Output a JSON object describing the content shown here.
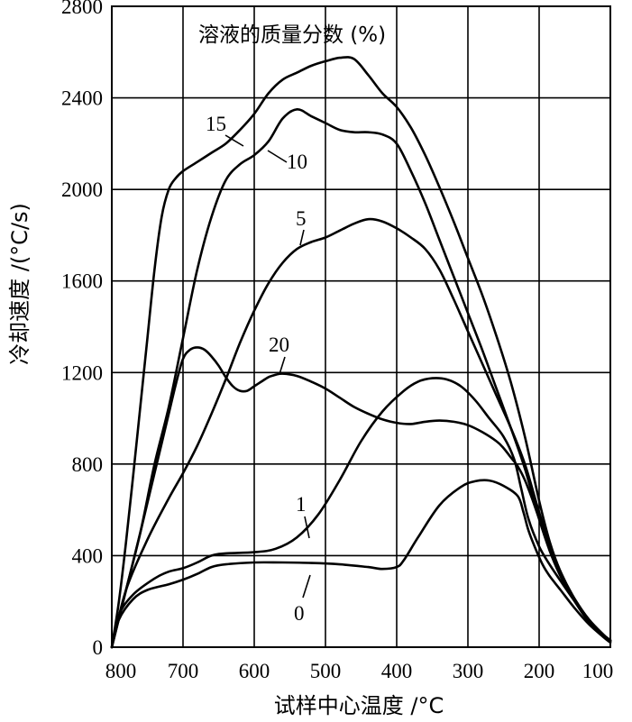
{
  "chart_data": {
    "type": "line",
    "legend_title": "溶液的质量分数 (%)",
    "xlabel": "试样中心温度 /°C",
    "ylabel": "冷却速度 /(°C/s)",
    "xlim": [
      800,
      100
    ],
    "ylim": [
      0,
      2800
    ],
    "xticks": [
      800,
      700,
      600,
      500,
      400,
      300,
      200,
      100
    ],
    "yticks": [
      0,
      400,
      800,
      1200,
      1600,
      2000,
      2400,
      2800
    ],
    "xtick_labels": [
      "800",
      "700",
      "600",
      "500",
      "400",
      "300",
      "200",
      "100"
    ],
    "ytick_labels": [
      "0",
      "400",
      "800",
      "1200",
      "1600",
      "2000",
      "2400",
      "2800"
    ],
    "grid": true,
    "series": [
      {
        "name": "0",
        "label": "0",
        "x": [
          800,
          790,
          770,
          750,
          720,
          700,
          680,
          660,
          640,
          600,
          560,
          520,
          480,
          440,
          420,
          400,
          390,
          370,
          340,
          310,
          290,
          270,
          250,
          230,
          222,
          215,
          205,
          195,
          185,
          170,
          150,
          130,
          110,
          100
        ],
        "y": [
          0,
          120,
          210,
          250,
          275,
          295,
          320,
          350,
          362,
          370,
          370,
          368,
          362,
          350,
          342,
          350,
          380,
          480,
          620,
          700,
          725,
          728,
          705,
          660,
          590,
          510,
          430,
          360,
          310,
          250,
          170,
          100,
          45,
          20
        ]
      },
      {
        "name": "1",
        "label": "1",
        "x": [
          800,
          790,
          770,
          740,
          720,
          700,
          680,
          660,
          640,
          600,
          570,
          540,
          510,
          480,
          450,
          420,
          390,
          370,
          350,
          330,
          310,
          290,
          270,
          250,
          235,
          225,
          215,
          200,
          185,
          170,
          150,
          130,
          110,
          100
        ],
        "y": [
          0,
          140,
          230,
          300,
          330,
          345,
          370,
          400,
          410,
          415,
          430,
          480,
          580,
          730,
          900,
          1030,
          1120,
          1160,
          1175,
          1170,
          1140,
          1080,
          1000,
          920,
          820,
          690,
          560,
          440,
          360,
          290,
          200,
          115,
          50,
          25
        ]
      },
      {
        "name": "5",
        "label": "5",
        "x": [
          800,
          780,
          750,
          720,
          700,
          680,
          660,
          640,
          620,
          600,
          580,
          560,
          540,
          520,
          500,
          480,
          460,
          440,
          420,
          400,
          380,
          360,
          340,
          320,
          300,
          280,
          260,
          240,
          220,
          200,
          185,
          170,
          150,
          130,
          110,
          100
        ],
        "y": [
          0,
          250,
          470,
          650,
          760,
          880,
          1020,
          1170,
          1330,
          1470,
          1590,
          1680,
          1740,
          1770,
          1790,
          1820,
          1850,
          1870,
          1860,
          1830,
          1790,
          1740,
          1650,
          1520,
          1380,
          1240,
          1100,
          960,
          800,
          590,
          450,
          330,
          210,
          120,
          55,
          30
        ]
      },
      {
        "name": "10",
        "label": "10",
        "x": [
          800,
          780,
          760,
          740,
          720,
          700,
          680,
          660,
          640,
          620,
          600,
          580,
          560,
          540,
          520,
          500,
          480,
          460,
          440,
          420,
          400,
          380,
          360,
          340,
          320,
          300,
          280,
          260,
          240,
          220,
          200,
          185,
          170,
          150,
          130,
          110,
          100
        ],
        "y": [
          0,
          250,
          500,
          800,
          1050,
          1350,
          1650,
          1880,
          2040,
          2110,
          2150,
          2210,
          2310,
          2350,
          2320,
          2290,
          2260,
          2250,
          2250,
          2240,
          2200,
          2080,
          1940,
          1780,
          1620,
          1460,
          1300,
          1130,
          960,
          780,
          560,
          420,
          310,
          200,
          110,
          50,
          25
        ]
      },
      {
        "name": "15",
        "label": "15",
        "x": [
          800,
          790,
          780,
          770,
          760,
          750,
          740,
          730,
          720,
          710,
          700,
          680,
          660,
          640,
          620,
          600,
          580,
          560,
          540,
          520,
          500,
          480,
          460,
          440,
          420,
          400,
          380,
          360,
          340,
          320,
          300,
          280,
          260,
          240,
          220,
          200,
          185,
          170,
          150,
          130,
          110,
          100
        ],
        "y": [
          0,
          200,
          460,
          750,
          1050,
          1350,
          1650,
          1880,
          2000,
          2050,
          2080,
          2120,
          2160,
          2200,
          2260,
          2330,
          2420,
          2480,
          2510,
          2540,
          2560,
          2575,
          2570,
          2500,
          2420,
          2360,
          2270,
          2150,
          2010,
          1860,
          1700,
          1540,
          1360,
          1160,
          920,
          640,
          460,
          330,
          210,
          120,
          55,
          30
        ]
      },
      {
        "name": "20",
        "label": "20",
        "x": [
          800,
          780,
          760,
          740,
          720,
          710,
          700,
          690,
          680,
          670,
          660,
          650,
          640,
          630,
          620,
          610,
          600,
          590,
          580,
          570,
          560,
          540,
          520,
          500,
          480,
          460,
          440,
          420,
          400,
          380,
          360,
          340,
          320,
          300,
          280,
          260,
          250,
          240,
          230,
          220,
          210,
          200,
          190,
          180,
          170,
          150,
          130,
          110,
          100
        ],
        "y": [
          0,
          250,
          500,
          760,
          1020,
          1150,
          1260,
          1300,
          1310,
          1300,
          1270,
          1230,
          1180,
          1140,
          1120,
          1120,
          1140,
          1160,
          1180,
          1190,
          1195,
          1185,
          1160,
          1130,
          1090,
          1050,
          1020,
          995,
          980,
          975,
          985,
          990,
          985,
          970,
          940,
          900,
          870,
          830,
          790,
          730,
          650,
          560,
          470,
          390,
          320,
          210,
          120,
          55,
          30
        ]
      }
    ]
  }
}
